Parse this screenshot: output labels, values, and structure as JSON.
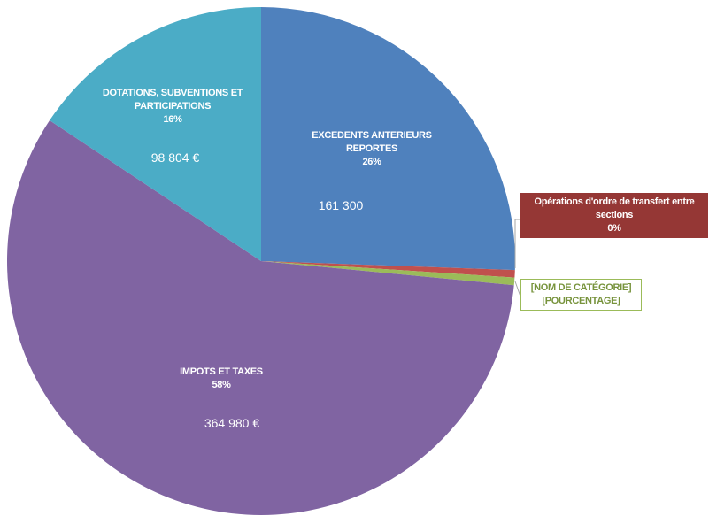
{
  "chart_data": {
    "type": "pie",
    "categories": [
      "EXCEDENTS ANTERIEURS REPORTES",
      "Opérations d'ordre de transfert entre sections",
      "[NOM DE CATÉGORIE]",
      "IMPOTS ET TAXES",
      "DOTATIONS, SUBVENTIONS ET PARTICIPATIONS"
    ],
    "values": [
      161300,
      3000,
      3000,
      364980,
      98804
    ],
    "value_labels": [
      "161 300",
      null,
      null,
      "364 980 €",
      "98 804 €"
    ],
    "percent_labels": [
      "26%",
      "0%",
      "[POURCENTAGE]",
      "58%",
      "16%"
    ],
    "colors": [
      "#4f81bd",
      "#c0504d",
      "#9bbb59",
      "#8064a2",
      "#4bacc6"
    ]
  }
}
